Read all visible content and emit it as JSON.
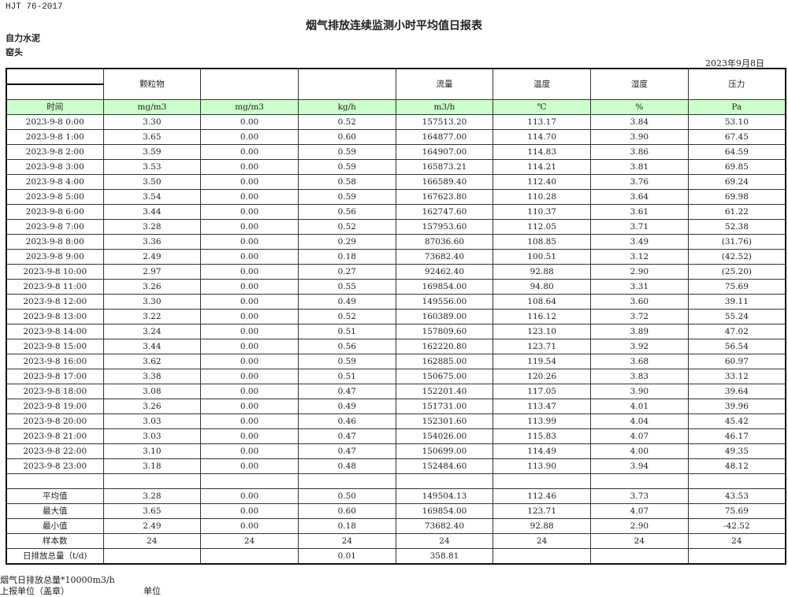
{
  "standard": "HJT  76-2017",
  "title": "烟气排放连续监测小时平均值日报表",
  "company": "自力水泥",
  "location": "窑头",
  "date": "2023年9月8日",
  "headers": [
    "",
    "颗粒物",
    "",
    "",
    "流量",
    "温度",
    "湿度",
    "压力"
  ],
  "units": [
    "时间",
    "mg/m3",
    "mg/m3",
    "kg/h",
    "m3/h",
    "℃",
    "%",
    "Pa"
  ],
  "rows": [
    [
      "2023-9-8 0:00",
      "3.30",
      "0.00",
      "0.52",
      "157513.20",
      "113.17",
      "3.84",
      "53.10"
    ],
    [
      "2023-9-8 1:00",
      "3.65",
      "0.00",
      "0.60",
      "164877.00",
      "114.70",
      "3.90",
      "67.45"
    ],
    [
      "2023-9-8 2:00",
      "3.59",
      "0.00",
      "0.59",
      "164907.00",
      "114.83",
      "3.86",
      "64.59"
    ],
    [
      "2023-9-8 3:00",
      "3.53",
      "0.00",
      "0.59",
      "165873.21",
      "114.21",
      "3.81",
      "69.85"
    ],
    [
      "2023-9-8 4:00",
      "3.50",
      "0.00",
      "0.58",
      "166589.40",
      "112.40",
      "3.76",
      "69.24"
    ],
    [
      "2023-9-8 5:00",
      "3.54",
      "0.00",
      "0.59",
      "167623.80",
      "110.28",
      "3.64",
      "69.98"
    ],
    [
      "2023-9-8 6:00",
      "3.44",
      "0.00",
      "0.56",
      "162747.60",
      "110.37",
      "3.61",
      "61.22"
    ],
    [
      "2023-9-8 7:00",
      "3.28",
      "0.00",
      "0.52",
      "157953.60",
      "112.05",
      "3.71",
      "52.38"
    ],
    [
      "2023-9-8 8:00",
      "3.36",
      "0.00",
      "0.29",
      "87036.60",
      "108.85",
      "3.49",
      "(31.76)"
    ],
    [
      "2023-9-8 9:00",
      "2.49",
      "0.00",
      "0.18",
      "73682.40",
      "100.51",
      "3.12",
      "(42.52)"
    ],
    [
      "2023-9-8 10:00",
      "2.97",
      "0.00",
      "0.27",
      "92462.40",
      "92.88",
      "2.90",
      "(25.20)"
    ],
    [
      "2023-9-8 11:00",
      "3.26",
      "0.00",
      "0.55",
      "169854.00",
      "94.80",
      "3.31",
      "75.69"
    ],
    [
      "2023-9-8 12:00",
      "3.30",
      "0.00",
      "0.49",
      "149556.00",
      "108.64",
      "3.60",
      "39.11"
    ],
    [
      "2023-9-8 13:00",
      "3.22",
      "0.00",
      "0.52",
      "160389.00",
      "116.12",
      "3.72",
      "55.24"
    ],
    [
      "2023-9-8 14:00",
      "3.24",
      "0.00",
      "0.51",
      "157809.60",
      "123.10",
      "3.89",
      "47.02"
    ],
    [
      "2023-9-8 15:00",
      "3.44",
      "0.00",
      "0.56",
      "162220.80",
      "123.71",
      "3.92",
      "56.54"
    ],
    [
      "2023-9-8 16:00",
      "3.62",
      "0.00",
      "0.59",
      "162885.00",
      "119.54",
      "3.68",
      "60.97"
    ],
    [
      "2023-9-8 17:00",
      "3.38",
      "0.00",
      "0.51",
      "150675.00",
      "120.26",
      "3.83",
      "33.12"
    ],
    [
      "2023-9-8 18:00",
      "3.08",
      "0.00",
      "0.47",
      "152201.40",
      "117.05",
      "3.90",
      "39.64"
    ],
    [
      "2023-9-8 19:00",
      "3.26",
      "0.00",
      "0.49",
      "151731.00",
      "113.47",
      "4.01",
      "39.96"
    ],
    [
      "2023-9-8 20:00",
      "3.03",
      "0.00",
      "0.46",
      "152301.60",
      "113.99",
      "4.04",
      "45.42"
    ],
    [
      "2023-9-8 21:00",
      "3.03",
      "0.00",
      "0.47",
      "154026.00",
      "115.83",
      "4.07",
      "46.17"
    ],
    [
      "2023-9-8 22:00",
      "3.10",
      "0.00",
      "0.47",
      "150699.00",
      "114.49",
      "4.00",
      "49.35"
    ],
    [
      "2023-9-8 23:00",
      "3.18",
      "0.00",
      "0.48",
      "152484.60",
      "113.90",
      "3.94",
      "48.12"
    ]
  ],
  "stats": [
    [
      "平均值",
      "3.28",
      "0.00",
      "0.50",
      "149504.13",
      "112.46",
      "3.73",
      "43.53"
    ],
    [
      "最大值",
      "3.65",
      "0.00",
      "0.60",
      "169854.00",
      "123.71",
      "4.07",
      "75.69"
    ],
    [
      "最小值",
      "2.49",
      "0.00",
      "0.18",
      "73682.40",
      "92.88",
      "2.90",
      "-42.52"
    ],
    [
      "样本数",
      "24",
      "24",
      "24",
      "24",
      "24",
      "24",
      "24"
    ],
    [
      "日排放总量（t/d)",
      "",
      "",
      "0.01",
      "358.81",
      "",
      "",
      ""
    ]
  ],
  "negative_color": "#ee0000",
  "footer": {
    "note": "烟气日排放总量*10000m3/h",
    "reporter": "上报单位（盖章）",
    "unit": "单位"
  }
}
